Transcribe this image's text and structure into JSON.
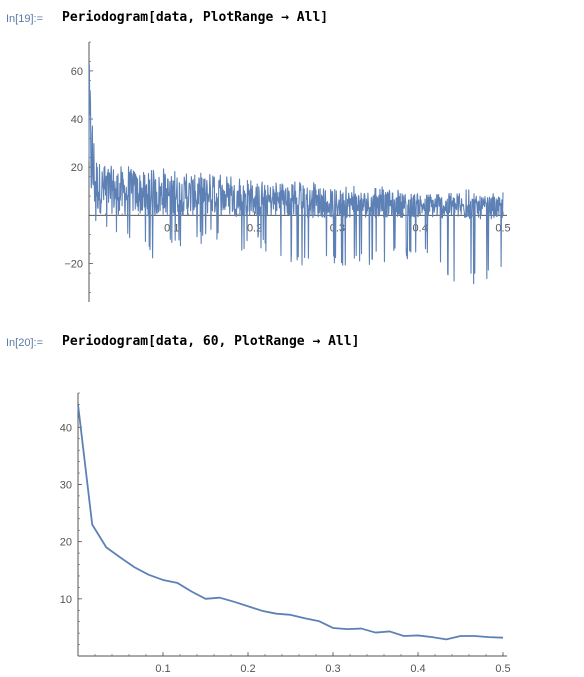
{
  "cells": [
    {
      "label": "In[19]:=",
      "code": "Periodogram[data, PlotRange → All]"
    },
    {
      "label": "In[20]:=",
      "code": "Periodogram[data, 60, PlotRange → All]"
    }
  ],
  "colors": {
    "line": "#5e81b5",
    "axis": "#555555",
    "tick_text": "#555555"
  },
  "chart_data": [
    {
      "type": "line",
      "title": "",
      "xlabel": "",
      "ylabel": "",
      "xlim": [
        0,
        0.5
      ],
      "ylim": [
        -36,
        72
      ],
      "x_ticks": [
        0.1,
        0.2,
        0.3,
        0.4,
        0.5
      ],
      "x_tick_labels": [
        "0.1",
        "0.2",
        "0.3",
        "0.4",
        "0.5"
      ],
      "y_ticks": [
        -20,
        20,
        40,
        60
      ],
      "y_tick_labels": [
        "−20",
        "20",
        "40",
        "60"
      ],
      "series": [
        {
          "x": [
            0,
            0.002,
            0.004,
            0.006,
            0.008,
            0.01,
            0.015,
            0.02,
            0.03,
            0.04,
            0.05,
            0.06,
            0.08,
            0.1,
            0.12,
            0.15,
            0.18,
            0.2,
            0.25,
            0.3,
            0.35,
            0.4,
            0.45,
            0.5
          ],
          "upper": [
            68,
            58,
            40,
            32,
            28,
            25,
            23,
            22,
            22,
            21,
            21,
            20,
            20,
            19,
            18,
            17,
            16,
            15,
            14,
            13,
            12,
            11,
            11,
            10
          ],
          "lower": [
            5,
            0,
            -2,
            -5,
            -5,
            -5,
            -6,
            -8,
            -5,
            -24,
            -8,
            -10,
            -22,
            -12,
            -15,
            -10,
            -18,
            -13,
            -22,
            -22,
            -20,
            -18,
            -30,
            -26
          ]
        }
      ]
    },
    {
      "type": "line",
      "title": "",
      "xlabel": "",
      "ylabel": "",
      "xlim": [
        0,
        0.5
      ],
      "ylim": [
        0,
        46
      ],
      "x_ticks": [
        0.1,
        0.2,
        0.3,
        0.4,
        0.5
      ],
      "x_tick_labels": [
        "0.1",
        "0.2",
        "0.3",
        "0.4",
        "0.5"
      ],
      "y_ticks": [
        10,
        20,
        30,
        40
      ],
      "y_tick_labels": [
        "10",
        "20",
        "30",
        "40"
      ],
      "series": [
        {
          "x": [
            0,
            0.0167,
            0.0333,
            0.05,
            0.0667,
            0.0833,
            0.1,
            0.1167,
            0.1333,
            0.15,
            0.1667,
            0.1833,
            0.2,
            0.2167,
            0.2333,
            0.25,
            0.2667,
            0.2833,
            0.3,
            0.3167,
            0.3333,
            0.35,
            0.3667,
            0.3833,
            0.4,
            0.4167,
            0.4333,
            0.45,
            0.4667,
            0.4833,
            0.5
          ],
          "y": [
            44,
            23,
            19,
            17.2,
            15.5,
            14.2,
            13.3,
            12.8,
            11.3,
            10,
            10.2,
            9.5,
            8.7,
            7.9,
            7.4,
            7.2,
            6.6,
            6.1,
            4.9,
            4.7,
            4.8,
            4.1,
            4.3,
            3.5,
            3.6,
            3.3,
            2.9,
            3.5,
            3.5,
            3.3,
            3.2
          ]
        }
      ]
    }
  ]
}
